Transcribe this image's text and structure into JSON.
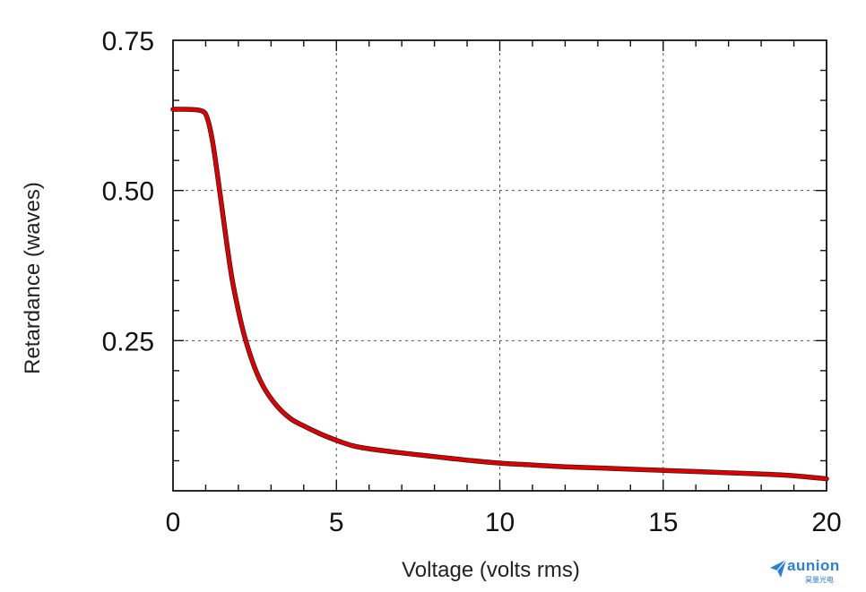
{
  "chart_data": {
    "type": "line",
    "title": "",
    "xlabel": "Voltage (volts rms)",
    "ylabel": "Retardance (waves)",
    "xlim": [
      0,
      20
    ],
    "ylim": [
      0,
      0.75
    ],
    "xticks": [
      0,
      5,
      10,
      15,
      20
    ],
    "xtick_labels": [
      "0",
      "5",
      "10",
      "15",
      "20"
    ],
    "yticks": [
      0.25,
      0.5,
      0.75
    ],
    "ytick_labels": [
      "0.25",
      "0.50",
      "0.75"
    ],
    "grid": true,
    "series": [
      {
        "color": "#e00000",
        "x": [
          0,
          0.5,
          0.9,
          1.05,
          1.2,
          1.35,
          1.5,
          1.65,
          1.8,
          2.0,
          2.2,
          2.5,
          2.8,
          3.2,
          3.6,
          4.0,
          4.5,
          5.0,
          5.5,
          6.0,
          7.0,
          8.0,
          9.0,
          10.0,
          11.0,
          12.0,
          13.0,
          14.0,
          15.0,
          16.0,
          17.0,
          18.0,
          19.0,
          20.0
        ],
        "y": [
          0.635,
          0.635,
          0.632,
          0.62,
          0.585,
          0.53,
          0.47,
          0.41,
          0.355,
          0.3,
          0.255,
          0.205,
          0.17,
          0.14,
          0.12,
          0.108,
          0.095,
          0.084,
          0.075,
          0.07,
          0.063,
          0.057,
          0.051,
          0.046,
          0.043,
          0.04,
          0.038,
          0.036,
          0.034,
          0.032,
          0.03,
          0.028,
          0.025,
          0.02
        ]
      }
    ]
  },
  "logo": {
    "word": "aunion",
    "sub": "昊量光电"
  }
}
